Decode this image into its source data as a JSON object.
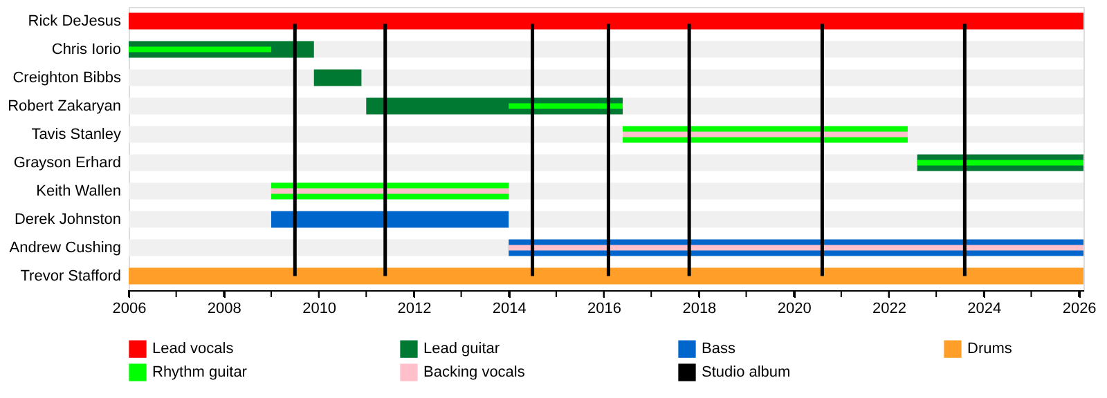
{
  "chart_data": {
    "type": "bar",
    "orientation": "horizontal",
    "legend": "bottom",
    "categories": [
      "Rick DeJesus",
      "Chris Iorio",
      "Creighton Bibbs",
      "Robert Zakaryan",
      "Tavis Stanley",
      "Grayson Erhard",
      "Keith Wallen",
      "Derek Johnston",
      "Andrew Cushing",
      "Trevor Stafford"
    ],
    "xlim": [
      2006,
      2026.1
    ],
    "xticks": [
      2006,
      {
        "value": 2007,
        "label": null
      },
      2008,
      {
        "value": 2009,
        "label": null
      },
      2010,
      {
        "value": 2011,
        "label": null
      },
      2012,
      {
        "value": 2013,
        "label": null
      },
      2014,
      {
        "value": 2015,
        "label": null
      },
      2016,
      {
        "value": 2017,
        "label": null
      },
      2018,
      {
        "value": 2019,
        "label": null
      },
      2020,
      {
        "value": 2021,
        "label": null
      },
      2022,
      {
        "value": 2023,
        "label": null
      },
      2024,
      {
        "value": 2025,
        "label": null
      },
      2026
    ],
    "series": [
      {
        "name": "Lead vocals",
        "color": "#ff0000",
        "values": [
          20.1,
          null,
          null,
          null,
          null,
          null,
          null,
          null,
          null,
          null
        ],
        "base": [
          2006,
          null,
          null,
          null,
          null,
          null,
          null,
          null,
          null,
          null
        ]
      },
      {
        "name": "Lead guitar",
        "color": "#007a33",
        "values": [
          null,
          3.9,
          1.0,
          5.4,
          null,
          3.5,
          null,
          null,
          null,
          null
        ],
        "base": [
          null,
          2006,
          2009.9,
          2011.0,
          null,
          2022.6,
          null,
          null,
          null,
          null
        ]
      },
      {
        "name": "Bass",
        "color": "#0066cc",
        "values": [
          null,
          null,
          null,
          null,
          null,
          null,
          null,
          5.0,
          12.1,
          null
        ],
        "base": [
          null,
          null,
          null,
          null,
          null,
          null,
          null,
          2009.0,
          2014.0,
          null
        ]
      },
      {
        "name": "Drums",
        "color": "#ff9f29",
        "values": [
          null,
          null,
          null,
          null,
          null,
          null,
          null,
          null,
          null,
          20.1
        ],
        "base": [
          null,
          null,
          null,
          null,
          null,
          null,
          null,
          null,
          null,
          2006
        ]
      },
      {
        "name": "Rhythm guitar",
        "color": "#00ff00",
        "values": [
          null,
          3.0,
          null,
          2.4,
          6.0,
          3.5,
          5.0,
          null,
          null,
          null
        ],
        "base": [
          null,
          2006,
          null,
          2014.0,
          2016.4,
          2022.6,
          2009.0,
          null,
          null,
          null
        ]
      },
      {
        "name": "Backing vocals",
        "color": "#ffc0cb",
        "values": [
          null,
          null,
          null,
          null,
          6.0,
          null,
          5.0,
          null,
          12.1,
          null
        ],
        "base": [
          null,
          null,
          null,
          null,
          2016.4,
          null,
          2009.0,
          null,
          2014.0,
          null
        ]
      }
    ],
    "ref_lines": [
      {
        "axis": "x",
        "value": 2009.5,
        "label": "Studio album",
        "color": "#000000"
      },
      {
        "axis": "x",
        "value": 2011.4,
        "color": "#000000"
      },
      {
        "axis": "x",
        "value": 2014.5,
        "color": "#000000"
      },
      {
        "axis": "x",
        "value": 2016.1,
        "color": "#000000"
      },
      {
        "axis": "x",
        "value": 2017.8,
        "color": "#000000"
      },
      {
        "axis": "x",
        "value": 2020.6,
        "color": "#000000"
      },
      {
        "axis": "x",
        "value": 2023.6,
        "color": "#000000"
      }
    ]
  }
}
